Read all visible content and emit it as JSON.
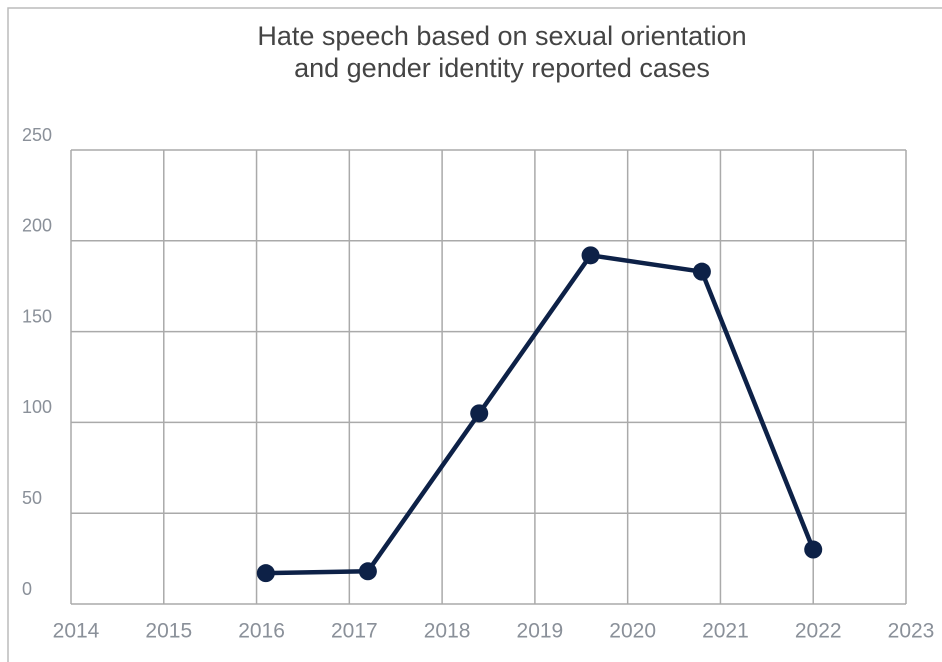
{
  "chart_data": {
    "type": "line",
    "title": "Hate speech based on sexual orientation\nand gender identity reported cases",
    "x": [
      2016.1,
      2017.2,
      2018.4,
      2019.6,
      2020.8,
      2022.0
    ],
    "series": [
      {
        "name": "Reported cases",
        "color": "#0d2147",
        "values": [
          17,
          18,
          105,
          192,
          183,
          30
        ]
      }
    ],
    "xlim": [
      2014,
      2023
    ],
    "xticks": [
      2014,
      2015,
      2016,
      2017,
      2018,
      2019,
      2020,
      2021,
      2022,
      2023
    ],
    "ylim": [
      0,
      250
    ],
    "yticks": [
      0,
      50,
      100,
      150,
      200,
      250
    ],
    "grid": true
  }
}
